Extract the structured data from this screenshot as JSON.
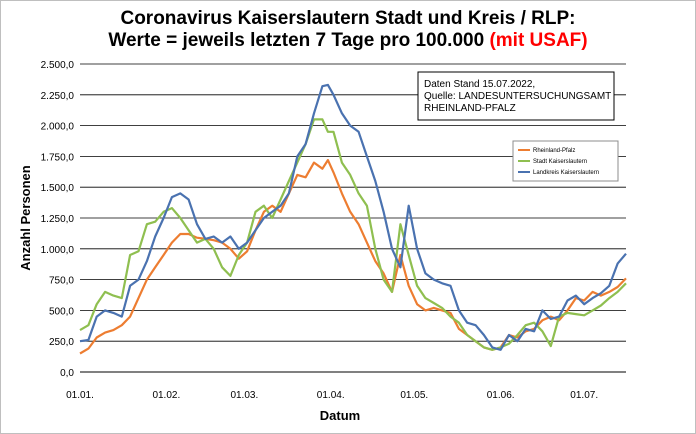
{
  "chart_data": {
    "type": "line",
    "title_line1": "Coronavirus Kaiserslautern Stadt und Kreis / RLP:",
    "title_line2_main": "Werte = jeweils letzten 7 Tage pro 100.000",
    "title_line2_highlight": "(mit USAF)",
    "xlabel": "Datum",
    "ylabel": "Anzahl Personen",
    "ylim": [
      0,
      2500
    ],
    "yticks": [
      0,
      250,
      500,
      750,
      1000,
      1250,
      1500,
      1750,
      2000,
      2250,
      2500
    ],
    "ytick_labels": [
      "0,0",
      "250,0",
      "500,0",
      "750,0",
      "1.000,0",
      "1.250,0",
      "1.500,0",
      "1.750,0",
      "2.000,0",
      "2.250,0",
      "2.500,0"
    ],
    "xtick_labels": [
      "01.01.",
      "01.02.",
      "01.03.",
      "01.04.",
      "01.05.",
      "01.06.",
      "01.07."
    ],
    "xtick_days": [
      0,
      31,
      59,
      90,
      120,
      151,
      181
    ],
    "xlim_days": [
      0,
      196
    ],
    "grid": "horizontal",
    "legend_position": "right",
    "annotation": [
      "Daten Stand 15.07.2022,",
      "Quelle: LANDESUNTERSUCHUNGSAMT",
      "RHEINLAND-PFALZ"
    ],
    "series": [
      {
        "name": "Rheinland-Pfalz",
        "color": "#ed7d31",
        "x": [
          0,
          3,
          6,
          9,
          12,
          15,
          18,
          21,
          24,
          27,
          30,
          33,
          36,
          39,
          42,
          45,
          48,
          51,
          54,
          57,
          60,
          63,
          66,
          69,
          72,
          75,
          78,
          81,
          84,
          87,
          89,
          91,
          94,
          97,
          100,
          103,
          106,
          109,
          112,
          115,
          118,
          121,
          124,
          127,
          130,
          133,
          136,
          139,
          142,
          145,
          148,
          151,
          154,
          157,
          160,
          163,
          166,
          169,
          172,
          175,
          178,
          181,
          184,
          187,
          190,
          193,
          196
        ],
        "y": [
          150,
          190,
          280,
          320,
          340,
          380,
          450,
          600,
          750,
          850,
          950,
          1050,
          1120,
          1120,
          1090,
          1080,
          1070,
          1050,
          1000,
          920,
          980,
          1150,
          1300,
          1350,
          1300,
          1450,
          1600,
          1580,
          1700,
          1650,
          1720,
          1620,
          1450,
          1300,
          1200,
          1050,
          900,
          800,
          650,
          950,
          700,
          550,
          500,
          520,
          500,
          480,
          350,
          300,
          250,
          200,
          180,
          200,
          300,
          280,
          330,
          350,
          420,
          450,
          420,
          500,
          600,
          580,
          650,
          620,
          650,
          690,
          760
        ]
      },
      {
        "name": "Stadt Kaiserslautern",
        "color": "#8fbf50",
        "x": [
          0,
          3,
          6,
          9,
          12,
          15,
          18,
          21,
          24,
          27,
          30,
          33,
          36,
          39,
          42,
          45,
          48,
          51,
          54,
          57,
          60,
          63,
          66,
          69,
          72,
          75,
          78,
          81,
          84,
          87,
          89,
          91,
          94,
          97,
          100,
          103,
          106,
          109,
          112,
          115,
          118,
          121,
          124,
          127,
          130,
          133,
          136,
          139,
          142,
          145,
          148,
          151,
          154,
          157,
          160,
          163,
          166,
          169,
          172,
          175,
          178,
          181,
          184,
          187,
          190,
          193,
          196
        ],
        "y": [
          340,
          380,
          550,
          650,
          620,
          600,
          950,
          980,
          1200,
          1220,
          1300,
          1330,
          1250,
          1150,
          1050,
          1080,
          1000,
          850,
          780,
          950,
          1050,
          1300,
          1350,
          1250,
          1400,
          1550,
          1700,
          1850,
          2050,
          2050,
          1950,
          1950,
          1700,
          1600,
          1450,
          1350,
          1000,
          750,
          650,
          1200,
          950,
          700,
          600,
          560,
          520,
          450,
          400,
          300,
          250,
          200,
          180,
          200,
          230,
          300,
          380,
          400,
          330,
          210,
          450,
          480,
          470,
          460,
          500,
          540,
          600,
          650,
          720
        ]
      },
      {
        "name": "Landkreis Kaiserslautern",
        "color": "#4a72b0",
        "x": [
          0,
          3,
          6,
          9,
          12,
          15,
          18,
          21,
          24,
          27,
          30,
          33,
          36,
          39,
          42,
          45,
          48,
          51,
          54,
          57,
          60,
          63,
          66,
          69,
          72,
          75,
          78,
          81,
          84,
          87,
          89,
          91,
          94,
          97,
          100,
          103,
          106,
          109,
          112,
          115,
          118,
          121,
          124,
          127,
          130,
          133,
          136,
          139,
          142,
          145,
          148,
          151,
          154,
          157,
          160,
          163,
          166,
          169,
          172,
          175,
          178,
          181,
          184,
          187,
          190,
          193,
          196
        ],
        "y": [
          250,
          260,
          450,
          500,
          480,
          450,
          700,
          750,
          900,
          1100,
          1250,
          1420,
          1450,
          1400,
          1200,
          1080,
          1100,
          1050,
          1100,
          1000,
          1050,
          1150,
          1250,
          1300,
          1350,
          1450,
          1750,
          1850,
          2100,
          2320,
          2330,
          2250,
          2100,
          2000,
          1950,
          1750,
          1550,
          1300,
          1000,
          850,
          1350,
          1000,
          800,
          750,
          720,
          700,
          500,
          400,
          380,
          300,
          200,
          180,
          300,
          250,
          350,
          330,
          500,
          430,
          450,
          580,
          620,
          550,
          600,
          640,
          700,
          880,
          960
        ]
      }
    ]
  }
}
